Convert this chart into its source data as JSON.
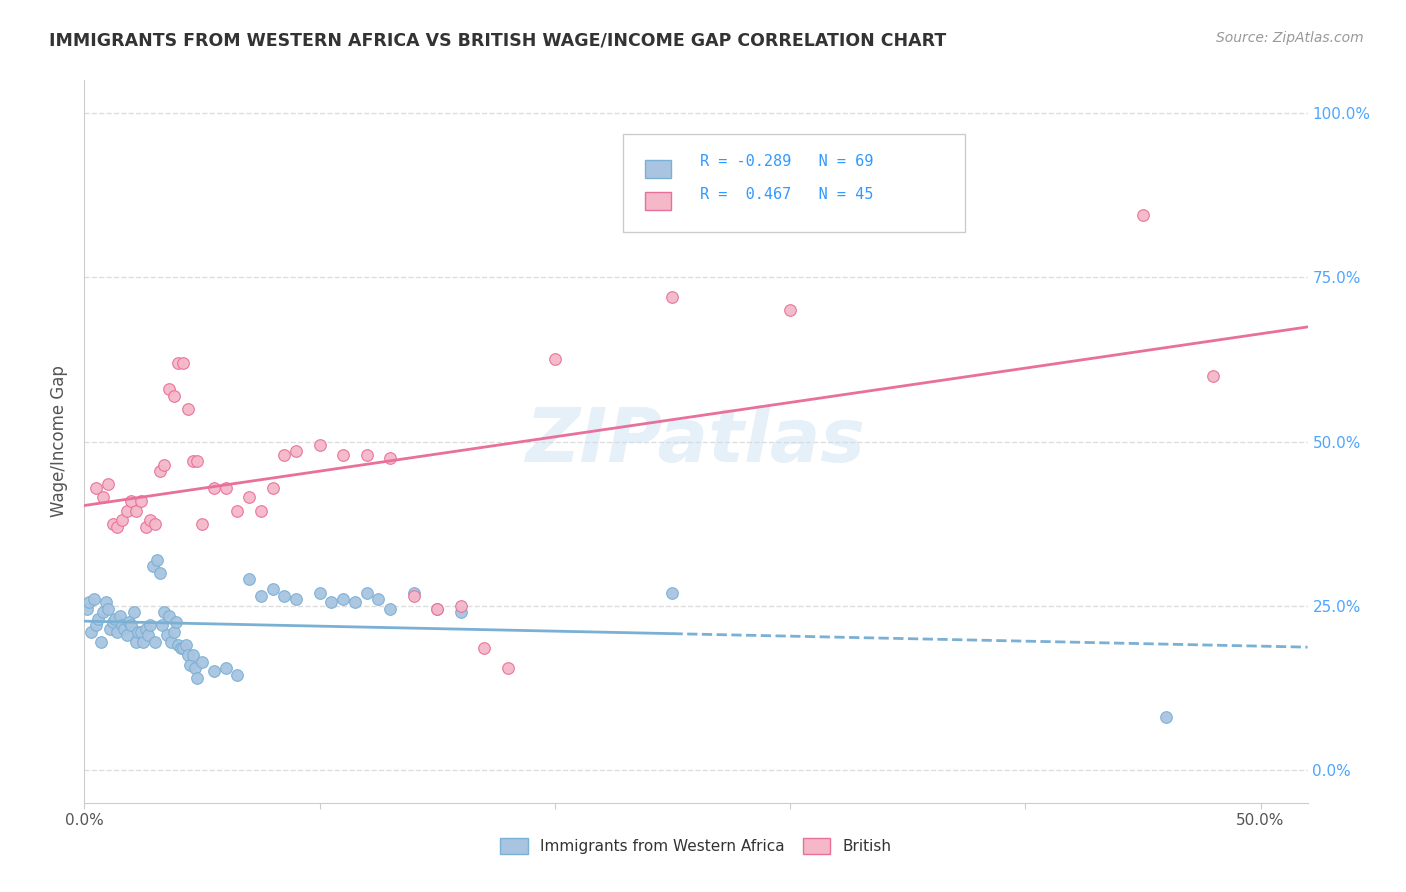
{
  "title": "IMMIGRANTS FROM WESTERN AFRICA VS BRITISH WAGE/INCOME GAP CORRELATION CHART",
  "source": "Source: ZipAtlas.com",
  "ylabel": "Wage/Income Gap",
  "yticks": [
    "0.0%",
    "25.0%",
    "50.0%",
    "75.0%",
    "100.0%"
  ],
  "ytick_vals": [
    0.0,
    0.25,
    0.5,
    0.75,
    1.0
  ],
  "legend_label_blue": "Immigrants from Western Africa",
  "legend_label_pink": "British",
  "R_blue": -0.289,
  "N_blue": 69,
  "R_pink": 0.467,
  "N_pink": 45,
  "blue_scatter": [
    [
      0.001,
      0.245
    ],
    [
      0.002,
      0.255
    ],
    [
      0.003,
      0.21
    ],
    [
      0.004,
      0.26
    ],
    [
      0.005,
      0.22
    ],
    [
      0.006,
      0.23
    ],
    [
      0.007,
      0.195
    ],
    [
      0.008,
      0.24
    ],
    [
      0.009,
      0.255
    ],
    [
      0.01,
      0.245
    ],
    [
      0.011,
      0.215
    ],
    [
      0.012,
      0.225
    ],
    [
      0.013,
      0.23
    ],
    [
      0.014,
      0.21
    ],
    [
      0.015,
      0.235
    ],
    [
      0.016,
      0.22
    ],
    [
      0.017,
      0.215
    ],
    [
      0.018,
      0.205
    ],
    [
      0.019,
      0.225
    ],
    [
      0.02,
      0.22
    ],
    [
      0.021,
      0.24
    ],
    [
      0.022,
      0.195
    ],
    [
      0.023,
      0.21
    ],
    [
      0.024,
      0.21
    ],
    [
      0.025,
      0.195
    ],
    [
      0.026,
      0.215
    ],
    [
      0.027,
      0.205
    ],
    [
      0.028,
      0.22
    ],
    [
      0.029,
      0.31
    ],
    [
      0.03,
      0.195
    ],
    [
      0.031,
      0.32
    ],
    [
      0.032,
      0.3
    ],
    [
      0.033,
      0.22
    ],
    [
      0.034,
      0.24
    ],
    [
      0.035,
      0.205
    ],
    [
      0.036,
      0.235
    ],
    [
      0.037,
      0.195
    ],
    [
      0.038,
      0.21
    ],
    [
      0.039,
      0.225
    ],
    [
      0.04,
      0.19
    ],
    [
      0.041,
      0.185
    ],
    [
      0.042,
      0.185
    ],
    [
      0.043,
      0.19
    ],
    [
      0.044,
      0.175
    ],
    [
      0.045,
      0.16
    ],
    [
      0.046,
      0.175
    ],
    [
      0.047,
      0.155
    ],
    [
      0.048,
      0.14
    ],
    [
      0.05,
      0.165
    ],
    [
      0.055,
      0.15
    ],
    [
      0.06,
      0.155
    ],
    [
      0.065,
      0.145
    ],
    [
      0.07,
      0.29
    ],
    [
      0.075,
      0.265
    ],
    [
      0.08,
      0.275
    ],
    [
      0.085,
      0.265
    ],
    [
      0.09,
      0.26
    ],
    [
      0.1,
      0.27
    ],
    [
      0.105,
      0.255
    ],
    [
      0.11,
      0.26
    ],
    [
      0.115,
      0.255
    ],
    [
      0.12,
      0.27
    ],
    [
      0.125,
      0.26
    ],
    [
      0.13,
      0.245
    ],
    [
      0.14,
      0.27
    ],
    [
      0.15,
      0.245
    ],
    [
      0.16,
      0.24
    ],
    [
      0.25,
      0.27
    ],
    [
      0.46,
      0.08
    ]
  ],
  "pink_scatter": [
    [
      0.005,
      0.43
    ],
    [
      0.008,
      0.415
    ],
    [
      0.01,
      0.435
    ],
    [
      0.012,
      0.375
    ],
    [
      0.014,
      0.37
    ],
    [
      0.016,
      0.38
    ],
    [
      0.018,
      0.395
    ],
    [
      0.02,
      0.41
    ],
    [
      0.022,
      0.395
    ],
    [
      0.024,
      0.41
    ],
    [
      0.026,
      0.37
    ],
    [
      0.028,
      0.38
    ],
    [
      0.03,
      0.375
    ],
    [
      0.032,
      0.455
    ],
    [
      0.034,
      0.465
    ],
    [
      0.036,
      0.58
    ],
    [
      0.038,
      0.57
    ],
    [
      0.04,
      0.62
    ],
    [
      0.042,
      0.62
    ],
    [
      0.044,
      0.55
    ],
    [
      0.046,
      0.47
    ],
    [
      0.048,
      0.47
    ],
    [
      0.05,
      0.375
    ],
    [
      0.055,
      0.43
    ],
    [
      0.06,
      0.43
    ],
    [
      0.065,
      0.395
    ],
    [
      0.07,
      0.415
    ],
    [
      0.075,
      0.395
    ],
    [
      0.08,
      0.43
    ],
    [
      0.085,
      0.48
    ],
    [
      0.09,
      0.485
    ],
    [
      0.1,
      0.495
    ],
    [
      0.11,
      0.48
    ],
    [
      0.12,
      0.48
    ],
    [
      0.13,
      0.475
    ],
    [
      0.14,
      0.265
    ],
    [
      0.15,
      0.245
    ],
    [
      0.16,
      0.25
    ],
    [
      0.17,
      0.185
    ],
    [
      0.18,
      0.155
    ],
    [
      0.2,
      0.625
    ],
    [
      0.25,
      0.72
    ],
    [
      0.3,
      0.7
    ],
    [
      0.45,
      0.845
    ],
    [
      0.48,
      0.6
    ]
  ],
  "xlim": [
    0.0,
    0.52
  ],
  "ylim": [
    -0.05,
    1.05
  ],
  "blue_color": "#a8c4e0",
  "blue_line_color": "#7ab0d4",
  "pink_color": "#f4b8c8",
  "pink_line_color": "#e8709a",
  "watermark": "ZIPatlas",
  "background_color": "#ffffff",
  "grid_color": "#dddddd"
}
